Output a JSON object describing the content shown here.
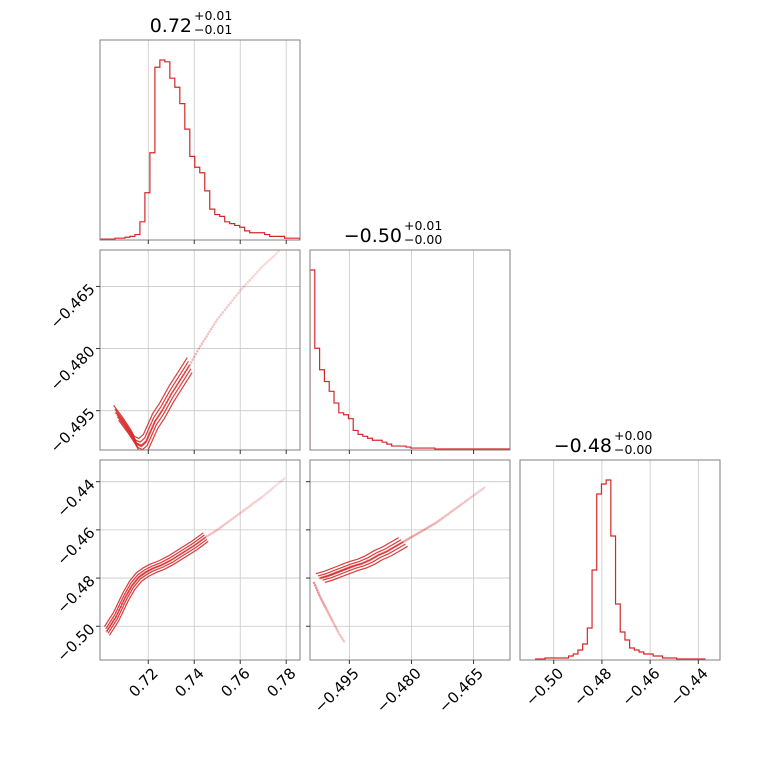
{
  "chart_data": {
    "type": "corner",
    "color": "#d62728",
    "parameters": [
      {
        "id": "p0",
        "title_main": "0.72",
        "title_upper": "+0.01",
        "title_lower": "−0.01",
        "range": [
          0.699,
          0.786
        ],
        "ticks": [
          0.72,
          0.74,
          0.76,
          0.78
        ],
        "tick_labels": [
          "0.72",
          "0.74",
          "0.76",
          "0.78"
        ],
        "hist_edges_start": 0.699,
        "hist_bin_width": 0.00217,
        "hist_counts": [
          0.5,
          0.5,
          0.5,
          1,
          1,
          1.5,
          2,
          3,
          10,
          26,
          48,
          95,
          99,
          98,
          89,
          84,
          75,
          61,
          46,
          40,
          37,
          27,
          17,
          14,
          13,
          10,
          9,
          8,
          7,
          5,
          4,
          4,
          4,
          3,
          2,
          2,
          2,
          1,
          1,
          1,
          0.5,
          0.5,
          0.5,
          0.5
        ]
      },
      {
        "id": "p1",
        "title_main": "−0.50",
        "title_upper": "+0.01",
        "title_lower": "−0.00",
        "range": [
          -0.5045,
          -0.4562
        ],
        "ticks": [
          -0.495,
          -0.48,
          -0.465
        ],
        "tick_labels": [
          "−0.495",
          "−0.480",
          "−0.465"
        ],
        "hist_edges_start": -0.5045,
        "hist_bin_width": 0.00116,
        "hist_counts": [
          92,
          52,
          41,
          35,
          30,
          24,
          19,
          18,
          16,
          10,
          8,
          7,
          6,
          5,
          5,
          4,
          3,
          2,
          2,
          2,
          1.5,
          1,
          1,
          1,
          1,
          1,
          0.5,
          0.5,
          0.5,
          0.5,
          0.5,
          0.5,
          0.5,
          0.5,
          0.5,
          0.5,
          0.5,
          0.5,
          0.5,
          0.5,
          0.5,
          0.5
        ]
      },
      {
        "id": "p2",
        "title_main": "−0.48",
        "title_upper": "+0.00",
        "title_lower": "−0.00",
        "range": [
          -0.514,
          -0.431
        ],
        "ticks": [
          -0.5,
          -0.48,
          -0.46,
          -0.44
        ],
        "tick_labels": [
          "−0.50",
          "−0.48",
          "−0.46",
          "−0.44"
        ],
        "hist_edges_start": -0.5075,
        "hist_bin_width": 0.00195,
        "hist_counts": [
          0.5,
          0.5,
          1,
          1,
          1,
          1,
          1,
          2,
          3,
          5,
          8,
          16,
          45,
          83,
          88,
          90,
          62,
          28,
          14,
          10,
          6,
          5,
          4,
          3,
          3,
          2,
          2,
          1,
          1,
          1,
          0.5,
          0.5,
          0.5,
          0.5,
          0.5,
          0.5
        ]
      }
    ],
    "pair_samples": {
      "p0_p1": {
        "x": [
          0.706,
          0.71,
          0.713,
          0.715,
          0.717,
          0.719,
          0.721,
          0.723,
          0.726,
          0.73,
          0.734,
          0.738,
          0.742,
          0.746,
          0.75,
          0.755,
          0.76,
          0.765,
          0.77,
          0.775,
          0.78
        ],
        "y": [
          -0.4955,
          -0.4985,
          -0.501,
          -0.503,
          -0.5035,
          -0.5025,
          -0.5,
          -0.4975,
          -0.495,
          -0.491,
          -0.4875,
          -0.484,
          -0.48,
          -0.4765,
          -0.473,
          -0.4695,
          -0.466,
          -0.463,
          -0.46,
          -0.4575,
          -0.4545
        ]
      },
      "p0_p2": {
        "x": [
          0.702,
          0.706,
          0.71,
          0.713,
          0.716,
          0.719,
          0.722,
          0.726,
          0.73,
          0.735,
          0.74,
          0.745,
          0.75,
          0.755,
          0.76,
          0.765,
          0.77,
          0.775,
          0.78
        ],
        "y": [
          -0.502,
          -0.496,
          -0.488,
          -0.483,
          -0.4795,
          -0.4775,
          -0.476,
          -0.4745,
          -0.4725,
          -0.4695,
          -0.4665,
          -0.463,
          -0.46,
          -0.4565,
          -0.453,
          -0.4495,
          -0.446,
          -0.442,
          -0.438
        ]
      },
      "p1_p2": {
        "x": [
          -0.502,
          -0.5,
          -0.4985,
          -0.497,
          -0.4955,
          -0.494,
          -0.492,
          -0.49,
          -0.488,
          -0.486,
          -0.484,
          -0.482,
          -0.48,
          -0.478,
          -0.476,
          -0.474,
          -0.472,
          -0.47,
          -0.468,
          -0.466,
          -0.464,
          -0.462
        ],
        "y": [
          -0.48,
          -0.479,
          -0.478,
          -0.477,
          -0.476,
          -0.475,
          -0.474,
          -0.4725,
          -0.4705,
          -0.469,
          -0.467,
          -0.465,
          -0.463,
          -0.461,
          -0.459,
          -0.457,
          -0.4545,
          -0.452,
          -0.4495,
          -0.447,
          -0.4445,
          -0.442
        ]
      },
      "p1_p2_branch": {
        "x": [
          -0.5035,
          -0.502,
          -0.5005,
          -0.499,
          -0.4975,
          -0.496
        ],
        "y": [
          -0.482,
          -0.488,
          -0.493,
          -0.498,
          -0.503,
          -0.507
        ]
      }
    }
  }
}
